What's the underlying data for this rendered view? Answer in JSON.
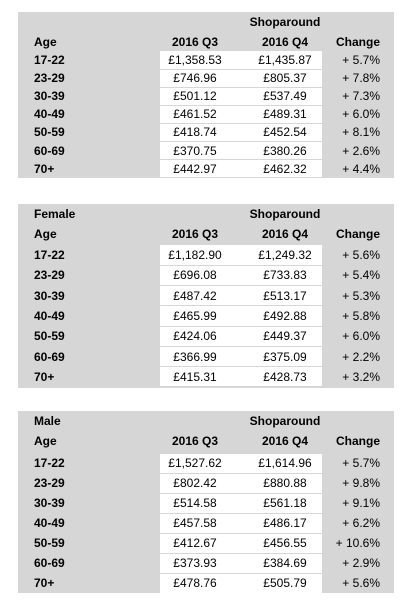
{
  "tables": [
    {
      "title": "Shoparound",
      "headers": [
        "Age",
        "2016 Q3",
        "2016 Q4",
        "Change"
      ],
      "rows": [
        [
          "17-22",
          "£1,358.53",
          "£1,435.87",
          "+ 5.7%"
        ],
        [
          "23-29",
          "£746.96",
          "£805.37",
          "+ 7.8%"
        ],
        [
          "30-39",
          "£501.12",
          "£537.49",
          "+ 7.3%"
        ],
        [
          "40-49",
          "£461.52",
          "£489.31",
          "+ 6.0%"
        ],
        [
          "50-59",
          "£418.74",
          "£452.54",
          "+ 8.1%"
        ],
        [
          "60-69",
          "£370.75",
          "£380.26",
          "+ 2.6%"
        ],
        [
          "70+",
          "£442.97",
          "£462.32",
          "+ 4.4%"
        ]
      ]
    },
    {
      "label": "Female",
      "title": "Shoparound",
      "headers": [
        "Age",
        "2016 Q3",
        "2016 Q4",
        "Change"
      ],
      "rows": [
        [
          "17-22",
          "£1,182.90",
          "£1,249.32",
          "+ 5.6%"
        ],
        [
          "23-29",
          "£696.08",
          "£733.83",
          "+ 5.4%"
        ],
        [
          "30-39",
          "£487.42",
          "£513.17",
          "+ 5.3%"
        ],
        [
          "40-49",
          "£465.99",
          "£492.88",
          "+ 5.8%"
        ],
        [
          "50-59",
          "£424.06",
          "£449.37",
          "+ 6.0%"
        ],
        [
          "60-69",
          "£366.99",
          "£375.09",
          "+ 2.2%"
        ],
        [
          "70+",
          "£415.31",
          "£428.73",
          "+ 3.2%"
        ]
      ]
    },
    {
      "label": "Male",
      "title": "Shoparound",
      "headers": [
        "Age",
        "2016 Q3",
        "2016 Q4",
        "Change"
      ],
      "rows": [
        [
          "17-22",
          "£1,527.62",
          "£1,614.96",
          "+ 5.7%"
        ],
        [
          "23-29",
          "£802.42",
          "£880.88",
          "+ 9.8%"
        ],
        [
          "30-39",
          "£514.58",
          "£561.18",
          "+ 9.1%"
        ],
        [
          "40-49",
          "£457.58",
          "£486.17",
          "+ 6.2%"
        ],
        [
          "50-59",
          "£412.67",
          "£456.55",
          "+ 10.6%"
        ],
        [
          "60-69",
          "£373.93",
          "£384.69",
          "+ 2.9%"
        ],
        [
          "70+",
          "£478.76",
          "£505.79",
          "+ 5.6%"
        ]
      ]
    }
  ]
}
